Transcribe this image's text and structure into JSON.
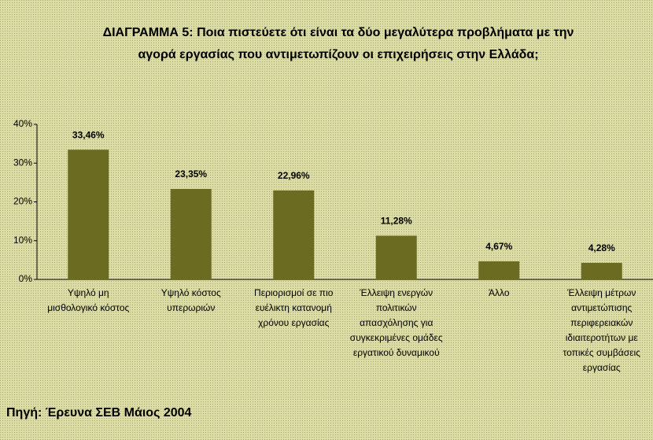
{
  "chart_data": {
    "type": "bar",
    "title": "ΔΙΑΓΡΑΜΜΑ 5: Ποια πιστεύετε ότι είναι τα δύο μεγαλύτερα προβλήματα με την αγορά εργασίας που αντιμετωπίζουν οι επιχειρήσεις στην Ελλάδα;",
    "categories": [
      "Υψηλό μη μισθολογικό κόστος",
      "Υψηλό κόστος υπερωριών",
      "Περιορισμοί σε πιο ευέλικτη κατανομή χρόνου εργασίας",
      "Έλλειψη ενεργών πολιτικών απασχόλησης για συγκεκριμένες ομάδες εργατικού δυναμικού",
      "Άλλο",
      "Έλλειψη μέτρων αντιμετώπισης περιφερειακών ιδιαιτεροτήτων με τοπικές συμβάσεις εργασίας"
    ],
    "values": [
      33.46,
      23.35,
      22.96,
      11.28,
      4.67,
      4.28
    ],
    "value_labels": [
      "33,46%",
      "23,35%",
      "22,96%",
      "11,28%",
      "4,67%",
      "4,28%"
    ],
    "color": "#6b6b22",
    "ylim": [
      0,
      40
    ],
    "yticks": [
      {
        "value": 0,
        "label": "0%"
      },
      {
        "value": 10,
        "label": "10%"
      },
      {
        "value": 20,
        "label": "20%"
      },
      {
        "value": 30,
        "label": "30%"
      },
      {
        "value": 40,
        "label": "40%"
      }
    ],
    "source": "Πηγή: Έρευνα ΣΕΒ Μάιος 2004"
  }
}
